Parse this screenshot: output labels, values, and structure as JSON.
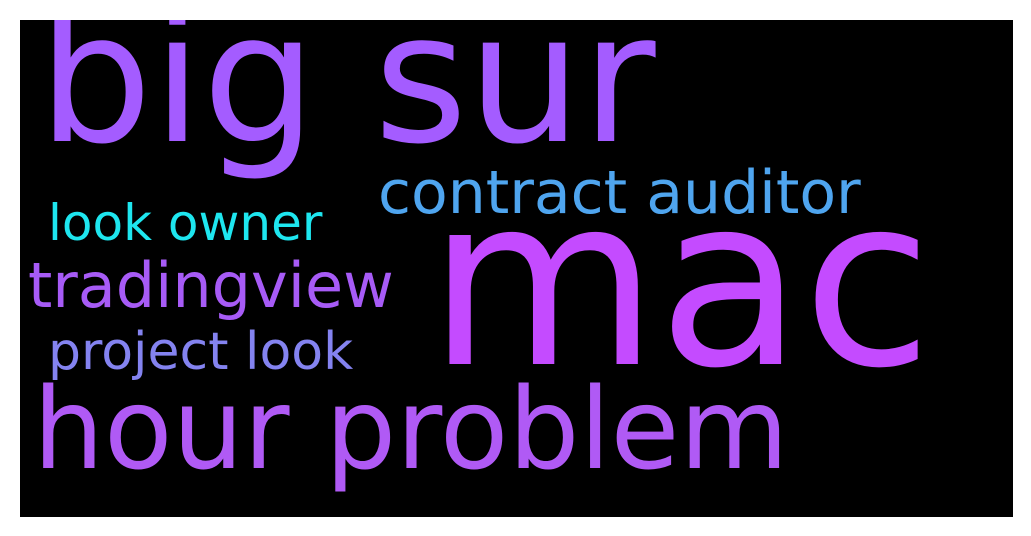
{
  "cloud": {
    "background": "#000000",
    "words": {
      "big_sur": {
        "text": "big sur",
        "color": "#a45cff"
      },
      "contract": {
        "text": "contract auditor",
        "color": "#4fa5ef"
      },
      "look_owner": {
        "text": "look owner",
        "color": "#1ee6ef"
      },
      "tradingview": {
        "text": "tradingview",
        "color": "#a75bf6"
      },
      "mac": {
        "text": "mac",
        "color": "#c44bff"
      },
      "project_look": {
        "text": "project look",
        "color": "#8483f0"
      },
      "hour_problem": {
        "text": "hour problem",
        "color": "#b05af5"
      }
    }
  }
}
